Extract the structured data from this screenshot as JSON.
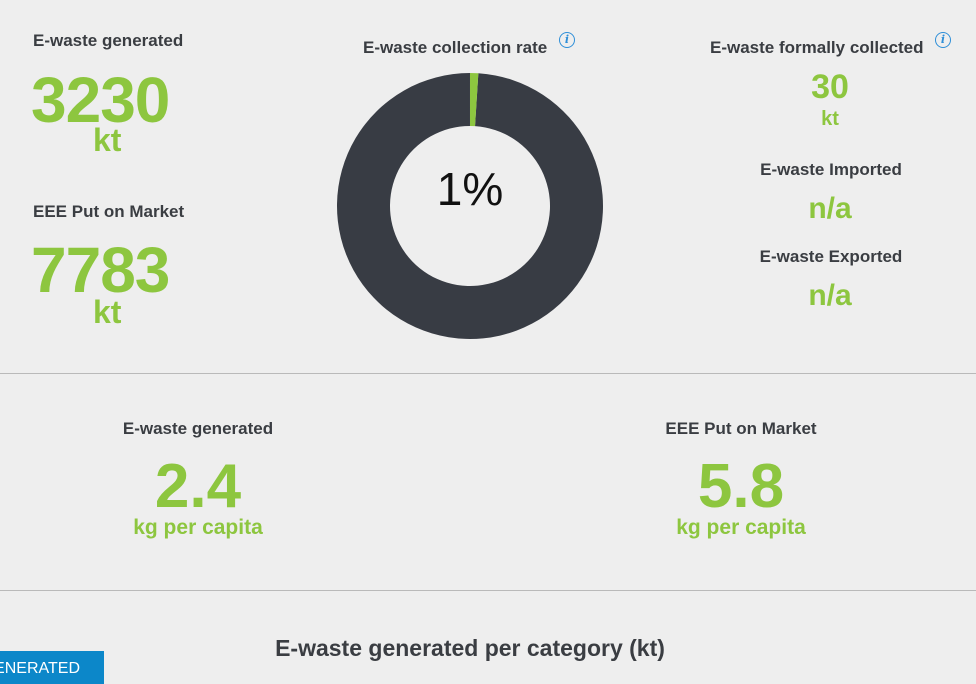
{
  "totals": {
    "generated": {
      "label": "E-waste generated",
      "value": "3230",
      "unit": "kt"
    },
    "put_on_market": {
      "label": "EEE Put on Market",
      "value": "7783",
      "unit": "kt"
    }
  },
  "collection_rate": {
    "label": "E-waste collection rate",
    "value_text": "1%",
    "fraction": 0.01,
    "colors": {
      "ring": "#383c44",
      "filled": "#8dc63f",
      "hole": "#eeeeee"
    }
  },
  "right_panel": {
    "formally_collected": {
      "label": "E-waste formally collected",
      "value": "30",
      "unit": "kt"
    },
    "imported": {
      "label": "E-waste Imported",
      "value": "n/a"
    },
    "exported": {
      "label": "E-waste Exported",
      "value": "n/a"
    }
  },
  "per_capita": {
    "generated": {
      "label": "E-waste generated",
      "value": "2.4",
      "unit": "kg per capita"
    },
    "put_on_market": {
      "label": "EEE Put on Market",
      "value": "5.8",
      "unit": "kg per capita"
    }
  },
  "category_section": {
    "title": "E-waste generated per category (kt)"
  },
  "tab_button": {
    "label": "GENERATED"
  },
  "icons": {
    "info": "i"
  },
  "colors": {
    "accent": "#8dc63f",
    "text": "#3a3d42",
    "button": "#0c87c9",
    "background": "#eeeeee"
  }
}
